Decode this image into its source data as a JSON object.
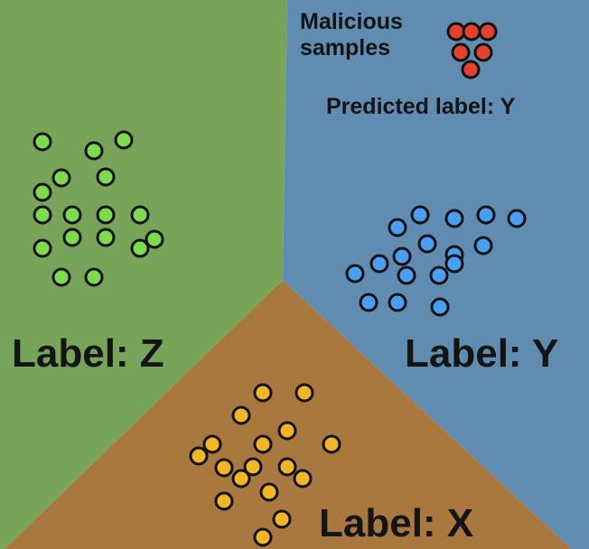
{
  "regions": {
    "z": {
      "name": "Label: Z",
      "color": "#78a45a"
    },
    "y": {
      "name": "Label: Y",
      "color": "#5f8cb0"
    },
    "x": {
      "name": "Label: X",
      "color": "#a8783e"
    }
  },
  "annotations": {
    "malicious_line1": "Malicious",
    "malicious_line2": "samples",
    "predicted": "Predicted label: Y"
  },
  "colors": {
    "green_points": "#7edb4e",
    "blue_points": "#4a9ff2",
    "orange_points": "#f3b627",
    "malicious_points": "#e5412e",
    "outline": "#111111"
  }
}
